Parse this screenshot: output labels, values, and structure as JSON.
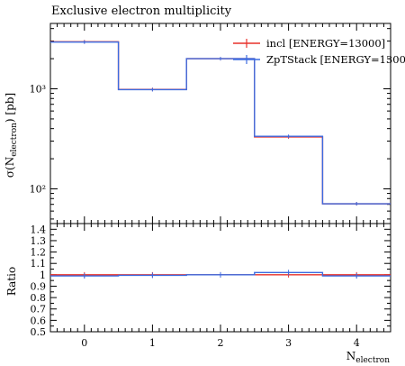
{
  "chart_data": {
    "type": "line",
    "title": "Exclusive electron multiplicity",
    "xlabel_base": "N",
    "xlabel_sub": "electron",
    "ylabel_pre": "σ(N",
    "ylabel_sub": "electron",
    "ylabel_post": ") [pb]",
    "ratio_ylabel": "Ratio",
    "x_bin_edges": [
      -0.5,
      0.5,
      1.5,
      2.5,
      3.5,
      4.5
    ],
    "x_ticks": [
      0,
      1,
      2,
      3,
      4
    ],
    "x_tick_labels": [
      "0",
      "1",
      "2",
      "3",
      "4"
    ],
    "ylim": [
      45,
      4500
    ],
    "ylog": true,
    "y_ticks": [
      100,
      1000
    ],
    "y_tick_labels": [
      "10²",
      "10³"
    ],
    "legend_position": "top-right",
    "series": [
      {
        "name": "incl [ENERGY=13000]",
        "color": "#e8312a",
        "values": [
          2950,
          985,
          2000,
          330,
          71
        ]
      },
      {
        "name": "ZpTStack [ENERGY=1300",
        "color": "#3c6be0",
        "values": [
          2930,
          980,
          2000,
          335,
          71
        ]
      }
    ],
    "ratio": {
      "ylim": [
        0.5,
        1.45
      ],
      "y_ticks": [
        0.5,
        0.6,
        0.7,
        0.8,
        0.9,
        1.0,
        1.1,
        1.2,
        1.3,
        1.4
      ],
      "y_tick_labels": [
        "0.5",
        "0.6",
        "0.7",
        "0.8",
        "0.9",
        "1",
        "1.1",
        "1.2",
        "1.3",
        "1.4"
      ],
      "series": [
        {
          "name": "incl [ENERGY=13000]",
          "color": "#e8312a",
          "values": [
            1.0,
            1.0,
            1.0,
            1.0,
            1.0
          ]
        },
        {
          "name": "ZpTStack [ENERGY=1300",
          "color": "#3c6be0",
          "values": [
            0.99,
            0.995,
            1.0,
            1.02,
            0.99
          ]
        }
      ]
    }
  }
}
